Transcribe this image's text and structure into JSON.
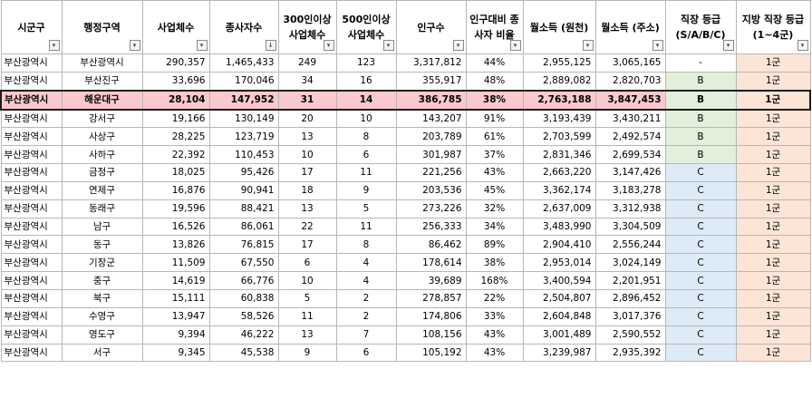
{
  "headers": [
    {
      "label": "시군구",
      "filter": "▾",
      "active": true
    },
    {
      "label": "행정구역",
      "filter": "▾"
    },
    {
      "label": "사업체수",
      "filter": "▾"
    },
    {
      "label": "종사자수",
      "filter": "↓"
    },
    {
      "label": "300인이상 사업체수",
      "filter": "▾"
    },
    {
      "label": "500인이상 사업체수",
      "filter": "▾"
    },
    {
      "label": "인구수",
      "filter": "▾"
    },
    {
      "label": "인구대비 종사자 비율",
      "filter": "▾"
    },
    {
      "label": "월소득 (원천)",
      "filter": "▾"
    },
    {
      "label": "월소득 (주소)",
      "filter": "▾"
    },
    {
      "label": "직장 등급 (S/A/B/C)",
      "filter": "▾"
    },
    {
      "label": "지방 직장 등급 (1~4군)",
      "filter": "▾"
    }
  ],
  "rows": [
    {
      "sigungu": "부산광역시",
      "region": "부산광역시",
      "biz": "290,357",
      "workers": "1,465,433",
      "b300": "249",
      "b500": "123",
      "pop": "3,317,812",
      "ratio": "44%",
      "inc_src": "2,955,125",
      "inc_addr": "3,065,165",
      "grade": "-",
      "tier": "1군"
    },
    {
      "sigungu": "부산광역시",
      "region": "부산진구",
      "biz": "33,696",
      "workers": "170,046",
      "b300": "34",
      "b500": "16",
      "pop": "355,917",
      "ratio": "48%",
      "inc_src": "2,889,082",
      "inc_addr": "2,820,703",
      "grade": "B",
      "tier": "1군"
    },
    {
      "sigungu": "부산광역시",
      "region": "해운대구",
      "biz": "28,104",
      "workers": "147,952",
      "b300": "31",
      "b500": "14",
      "pop": "386,785",
      "ratio": "38%",
      "inc_src": "2,763,188",
      "inc_addr": "3,847,453",
      "grade": "B",
      "tier": "1군",
      "highlight": true
    },
    {
      "sigungu": "부산광역시",
      "region": "강서구",
      "biz": "19,166",
      "workers": "130,149",
      "b300": "20",
      "b500": "10",
      "pop": "143,207",
      "ratio": "91%",
      "inc_src": "3,193,439",
      "inc_addr": "3,430,211",
      "grade": "B",
      "tier": "1군"
    },
    {
      "sigungu": "부산광역시",
      "region": "사상구",
      "biz": "28,225",
      "workers": "123,719",
      "b300": "13",
      "b500": "8",
      "pop": "203,789",
      "ratio": "61%",
      "inc_src": "2,703,599",
      "inc_addr": "2,492,574",
      "grade": "B",
      "tier": "1군"
    },
    {
      "sigungu": "부산광역시",
      "region": "사하구",
      "biz": "22,392",
      "workers": "110,453",
      "b300": "10",
      "b500": "6",
      "pop": "301,987",
      "ratio": "37%",
      "inc_src": "2,831,346",
      "inc_addr": "2,699,534",
      "grade": "B",
      "tier": "1군"
    },
    {
      "sigungu": "부산광역시",
      "region": "금정구",
      "biz": "18,025",
      "workers": "95,426",
      "b300": "17",
      "b500": "11",
      "pop": "221,256",
      "ratio": "43%",
      "inc_src": "2,663,220",
      "inc_addr": "3,147,426",
      "grade": "C",
      "tier": "1군"
    },
    {
      "sigungu": "부산광역시",
      "region": "연제구",
      "biz": "16,876",
      "workers": "90,941",
      "b300": "18",
      "b500": "9",
      "pop": "203,536",
      "ratio": "45%",
      "inc_src": "3,362,174",
      "inc_addr": "3,183,278",
      "grade": "C",
      "tier": "1군"
    },
    {
      "sigungu": "부산광역시",
      "region": "동래구",
      "biz": "19,596",
      "workers": "88,421",
      "b300": "13",
      "b500": "5",
      "pop": "273,226",
      "ratio": "32%",
      "inc_src": "2,637,009",
      "inc_addr": "3,312,938",
      "grade": "C",
      "tier": "1군"
    },
    {
      "sigungu": "부산광역시",
      "region": "남구",
      "biz": "16,526",
      "workers": "86,061",
      "b300": "22",
      "b500": "11",
      "pop": "256,333",
      "ratio": "34%",
      "inc_src": "3,483,990",
      "inc_addr": "3,304,509",
      "grade": "C",
      "tier": "1군"
    },
    {
      "sigungu": "부산광역시",
      "region": "동구",
      "biz": "13,826",
      "workers": "76,815",
      "b300": "17",
      "b500": "8",
      "pop": "86,462",
      "ratio": "89%",
      "inc_src": "2,904,410",
      "inc_addr": "2,556,244",
      "grade": "C",
      "tier": "1군"
    },
    {
      "sigungu": "부산광역시",
      "region": "기장군",
      "biz": "11,509",
      "workers": "67,550",
      "b300": "6",
      "b500": "4",
      "pop": "178,614",
      "ratio": "38%",
      "inc_src": "2,953,014",
      "inc_addr": "3,024,149",
      "grade": "C",
      "tier": "1군"
    },
    {
      "sigungu": "부산광역시",
      "region": "중구",
      "biz": "14,619",
      "workers": "66,776",
      "b300": "10",
      "b500": "4",
      "pop": "39,689",
      "ratio": "168%",
      "inc_src": "3,400,594",
      "inc_addr": "2,201,951",
      "grade": "C",
      "tier": "1군"
    },
    {
      "sigungu": "부산광역시",
      "region": "북구",
      "biz": "15,111",
      "workers": "60,838",
      "b300": "5",
      "b500": "2",
      "pop": "278,857",
      "ratio": "22%",
      "inc_src": "2,504,807",
      "inc_addr": "2,896,452",
      "grade": "C",
      "tier": "1군"
    },
    {
      "sigungu": "부산광역시",
      "region": "수영구",
      "biz": "13,947",
      "workers": "58,526",
      "b300": "11",
      "b500": "2",
      "pop": "174,806",
      "ratio": "33%",
      "inc_src": "2,604,848",
      "inc_addr": "3,017,376",
      "grade": "C",
      "tier": "1군"
    },
    {
      "sigungu": "부산광역시",
      "region": "영도구",
      "biz": "9,394",
      "workers": "46,222",
      "b300": "13",
      "b500": "7",
      "pop": "108,156",
      "ratio": "43%",
      "inc_src": "3,001,489",
      "inc_addr": "2,590,552",
      "grade": "C",
      "tier": "1군"
    },
    {
      "sigungu": "부산광역시",
      "region": "서구",
      "biz": "9,345",
      "workers": "45,538",
      "b300": "9",
      "b500": "6",
      "pop": "105,192",
      "ratio": "43%",
      "inc_src": "3,239,987",
      "inc_addr": "2,935,392",
      "grade": "C",
      "tier": "1군"
    }
  ],
  "colors": {
    "highlight": "#f9c9ce",
    "grade_b": "#e2efda",
    "grade_c": "#ddebf7",
    "tier": "#fce4d6"
  }
}
